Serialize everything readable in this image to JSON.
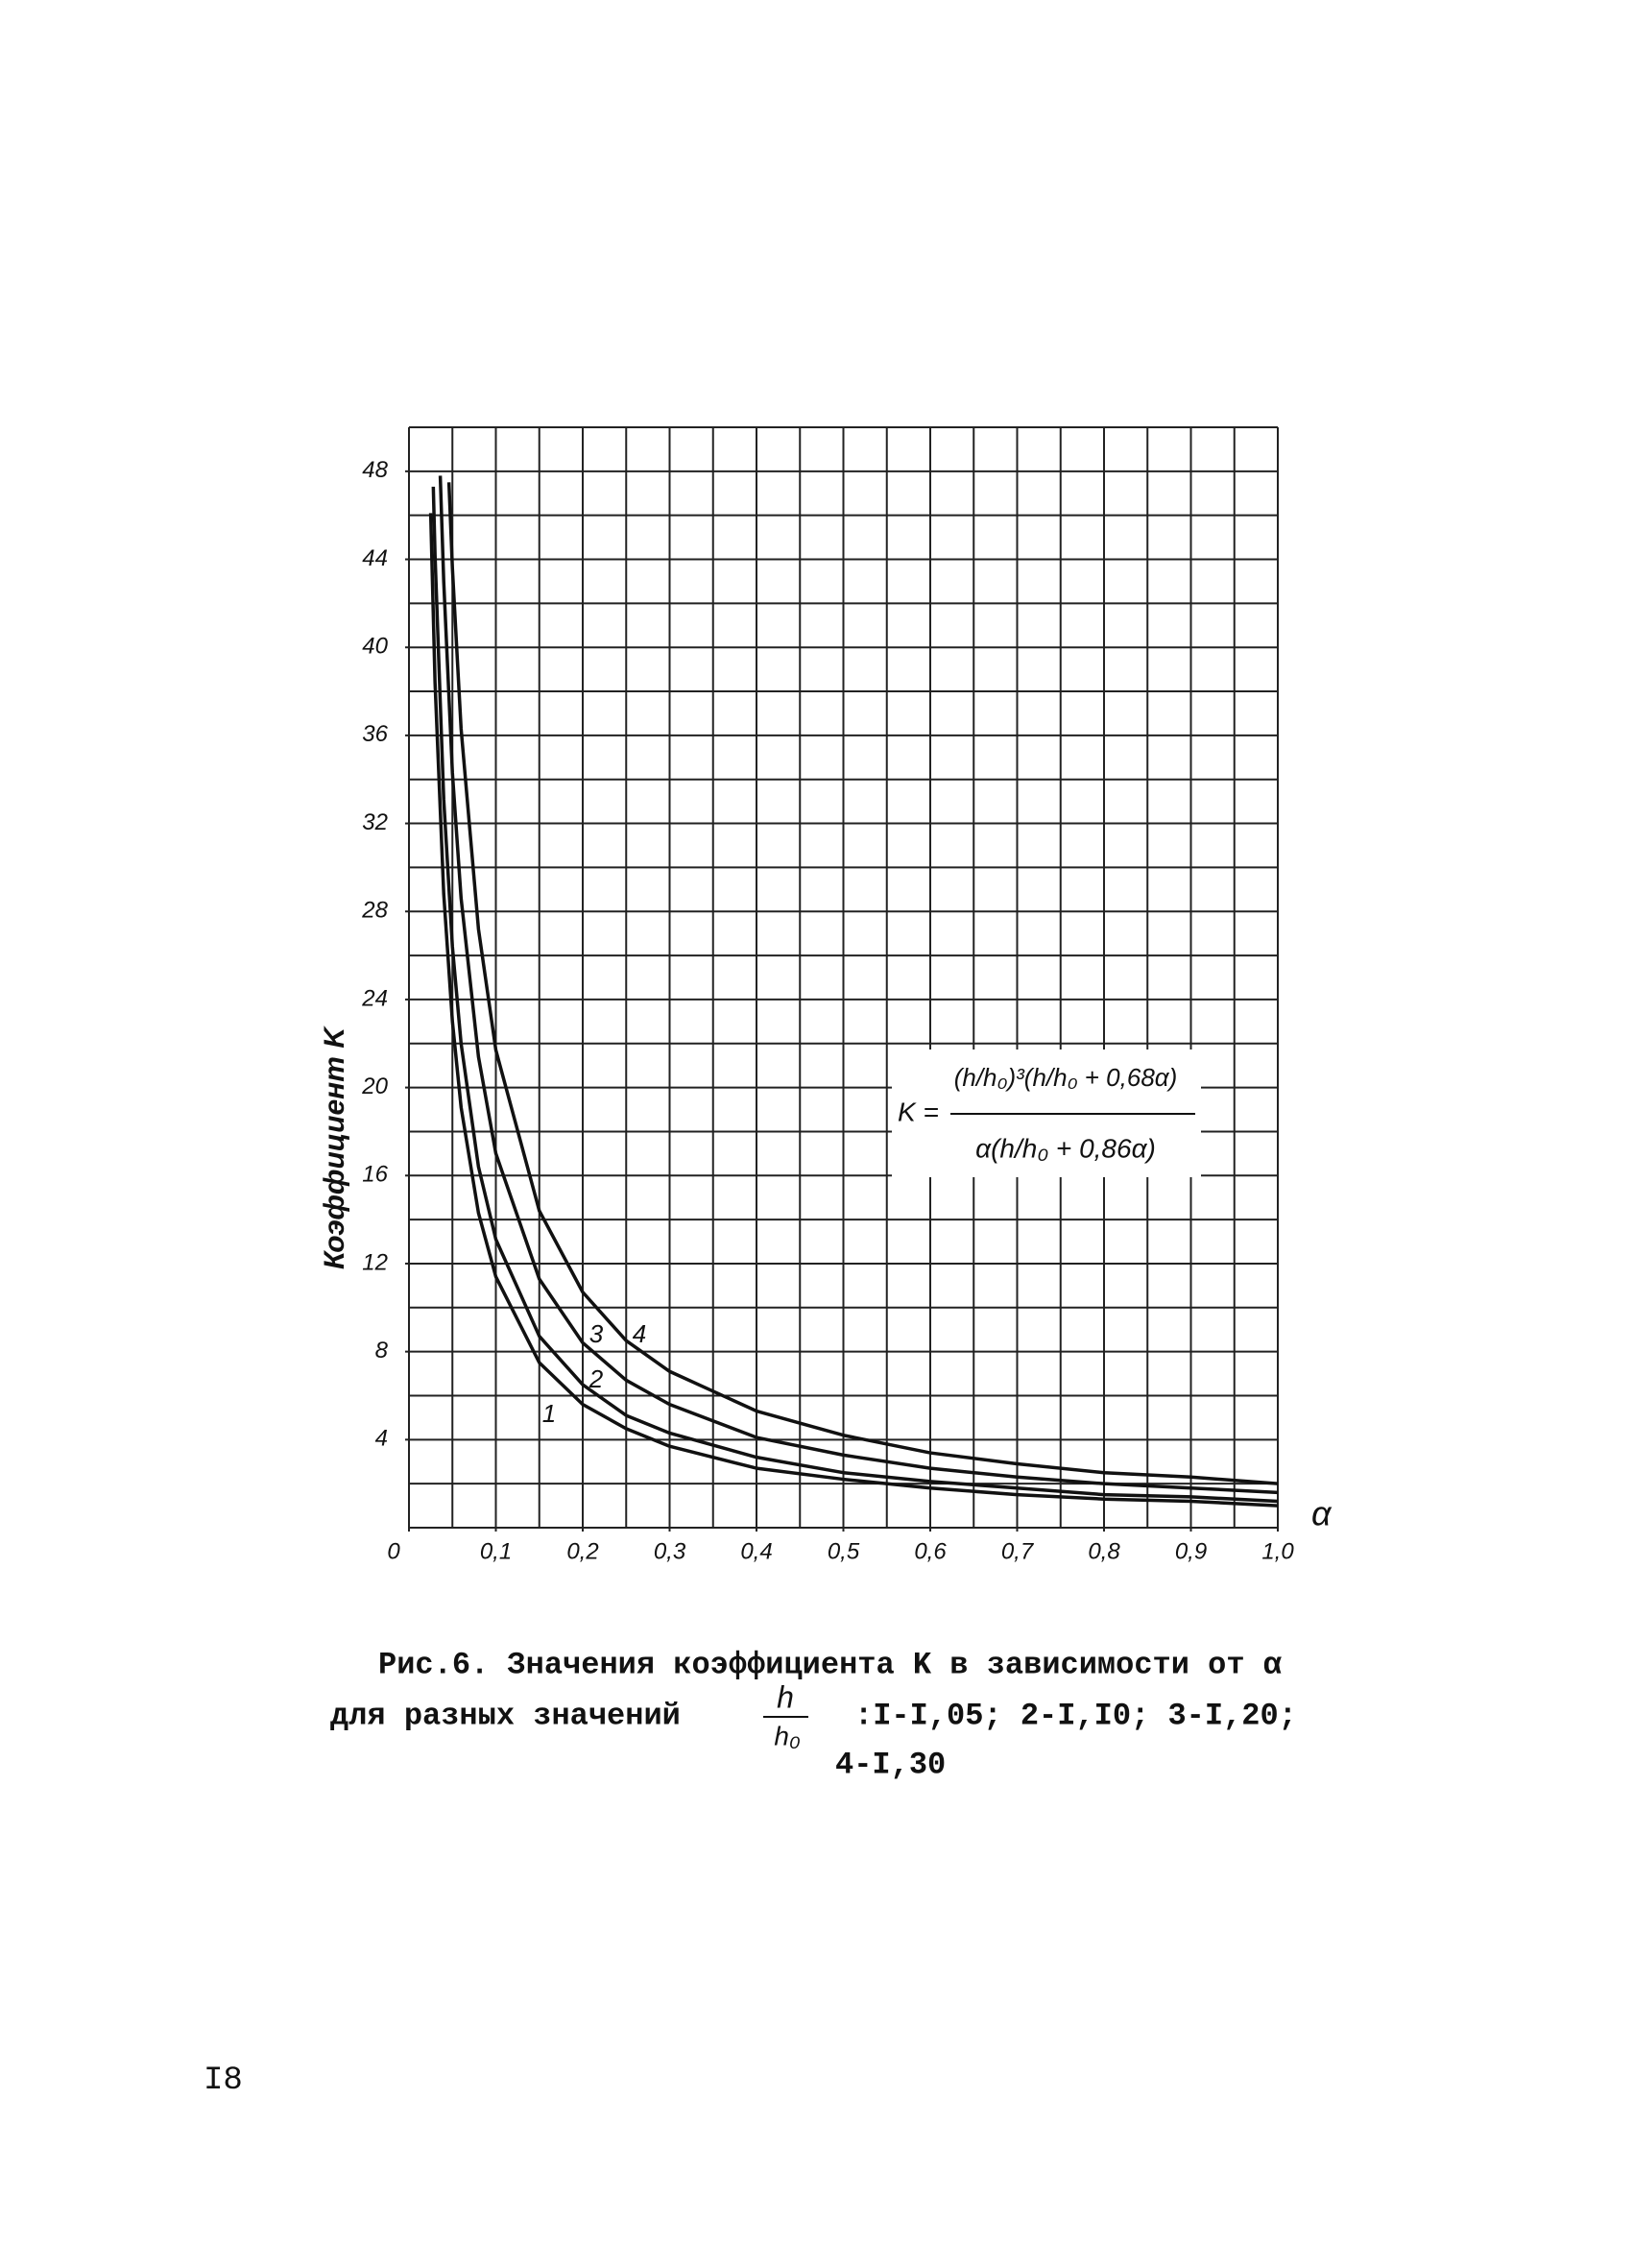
{
  "chart_data": {
    "type": "line",
    "y_label": "Коэффициент K",
    "x_label": "α",
    "xlim": [
      0,
      1.0
    ],
    "ylim": [
      0,
      50
    ],
    "xticks": [
      0,
      {
        "value": 0.1,
        "label": "0,1"
      },
      {
        "value": 0.2,
        "label": "0,2"
      },
      {
        "value": 0.3,
        "label": "0,3"
      },
      {
        "value": 0.4,
        "label": "0,4"
      },
      {
        "value": 0.5,
        "label": "0,5"
      },
      {
        "value": 0.6,
        "label": "0,6"
      },
      {
        "value": 0.7,
        "label": "0,7"
      },
      {
        "value": 0.8,
        "label": "0,8"
      },
      {
        "value": 0.9,
        "label": "0,9"
      },
      {
        "value": 1.0,
        "label": "1,0"
      }
    ],
    "yticks": [
      4,
      8,
      12,
      16,
      20,
      24,
      28,
      32,
      36,
      40,
      44,
      48
    ],
    "xminorticks": [
      0,
      0.05,
      0.1,
      0.15,
      0.2,
      0.25,
      0.3,
      0.35,
      0.4,
      0.45,
      0.5,
      0.55,
      0.6,
      0.65,
      0.7,
      0.75,
      0.8,
      0.85,
      0.9,
      0.95,
      1.0
    ],
    "yminorticks": [
      0,
      2,
      4,
      6,
      8,
      10,
      12,
      14,
      16,
      18,
      20,
      22,
      24,
      26,
      28,
      30,
      32,
      34,
      36,
      38,
      40,
      42,
      44,
      46,
      48,
      50
    ],
    "grid": true,
    "series": [
      {
        "name": "1",
        "color": "#111111",
        "x": [
          0.025,
          0.03,
          0.04,
          0.05,
          0.06,
          0.08,
          0.1,
          0.15,
          0.2,
          0.25,
          0.3,
          0.4,
          0.5,
          0.6,
          0.7,
          0.8,
          0.9,
          1.0
        ],
        "values": [
          46.1,
          38.4,
          28.8,
          23.0,
          19.1,
          14.3,
          11.4,
          7.5,
          5.6,
          4.5,
          3.7,
          2.7,
          2.2,
          1.8,
          1.5,
          1.3,
          1.2,
          1.0
        ]
      },
      {
        "name": "2",
        "color": "#111111",
        "x": [
          0.028,
          0.03,
          0.04,
          0.05,
          0.06,
          0.08,
          0.1,
          0.15,
          0.2,
          0.25,
          0.3,
          0.4,
          0.5,
          0.6,
          0.7,
          0.8,
          0.9,
          1.0
        ],
        "values": [
          47.3,
          44.2,
          33.1,
          26.4,
          22.0,
          16.4,
          13.1,
          8.7,
          6.5,
          5.1,
          4.3,
          3.2,
          2.5,
          2.1,
          1.8,
          1.5,
          1.4,
          1.2
        ]
      },
      {
        "name": "3",
        "color": "#111111",
        "x": [
          0.036,
          0.04,
          0.05,
          0.06,
          0.08,
          0.1,
          0.15,
          0.2,
          0.25,
          0.3,
          0.4,
          0.5,
          0.6,
          0.7,
          0.8,
          0.9,
          1.0
        ],
        "values": [
          47.8,
          43.0,
          34.3,
          28.6,
          21.4,
          17.0,
          11.3,
          8.4,
          6.7,
          5.6,
          4.1,
          3.3,
          2.7,
          2.3,
          2.0,
          1.8,
          1.6
        ]
      },
      {
        "name": "4",
        "color": "#111111",
        "x": [
          0.046,
          0.05,
          0.06,
          0.08,
          0.1,
          0.15,
          0.2,
          0.25,
          0.3,
          0.4,
          0.5,
          0.6,
          0.7,
          0.8,
          0.9,
          1.0
        ],
        "values": [
          47.5,
          43.6,
          36.3,
          27.2,
          21.7,
          14.4,
          10.7,
          8.5,
          7.1,
          5.3,
          4.2,
          3.4,
          2.9,
          2.5,
          2.3,
          2.0
        ]
      }
    ],
    "formula": {
      "lhs": "K =",
      "numerator": "(h/h₀)³(h/h₀ + 0,68α)",
      "denominator": "α(h/h₀ + 0,86α)"
    }
  },
  "caption": {
    "line1": "Рис.6. Значения коэффициента K в зависимости от α",
    "line2": "для разных значений",
    "frac_num": "h",
    "frac_den": "h₀",
    "line2_rest": ":I-I,05; 2-I,I0; 3-I,20;",
    "line3": "4-I,30"
  },
  "page_number": "I8"
}
